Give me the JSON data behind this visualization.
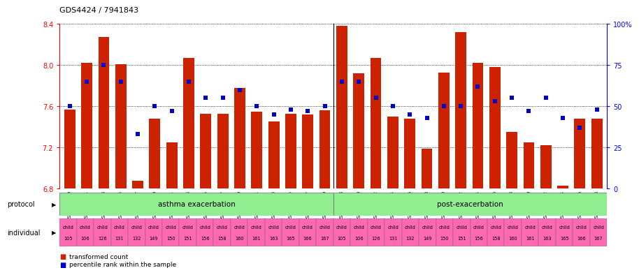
{
  "title": "GDS4424 / 7941843",
  "samples": [
    "GSM751969",
    "GSM751971",
    "GSM751973",
    "GSM751975",
    "GSM751977",
    "GSM751979",
    "GSM751981",
    "GSM751983",
    "GSM751985",
    "GSM751987",
    "GSM751989",
    "GSM751991",
    "GSM751993",
    "GSM751995",
    "GSM751997",
    "GSM751999",
    "GSM751968",
    "GSM751970",
    "GSM751972",
    "GSM751974",
    "GSM751976",
    "GSM751978",
    "GSM751980",
    "GSM751982",
    "GSM751984",
    "GSM751986",
    "GSM751988",
    "GSM751990",
    "GSM751992",
    "GSM751994",
    "GSM751996",
    "GSM751998"
  ],
  "bar_values": [
    7.57,
    8.02,
    8.27,
    8.01,
    6.88,
    7.48,
    7.25,
    8.07,
    7.53,
    7.53,
    7.78,
    7.55,
    7.45,
    7.53,
    7.52,
    7.56,
    8.38,
    7.92,
    8.07,
    7.5,
    7.48,
    7.19,
    7.93,
    8.32,
    8.02,
    7.98,
    7.35,
    7.25,
    7.22,
    6.83,
    7.48,
    7.48
  ],
  "dot_percentiles": [
    50,
    65,
    75,
    65,
    33,
    50,
    47,
    65,
    55,
    55,
    60,
    50,
    45,
    48,
    47,
    50,
    65,
    65,
    55,
    50,
    45,
    43,
    50,
    50,
    62,
    53,
    55,
    47,
    55,
    43,
    37,
    48
  ],
  "individual_labels_top": [
    "child",
    "child",
    "child",
    "child",
    "child",
    "child",
    "child",
    "child",
    "child",
    "child",
    "child",
    "child",
    "child",
    "child",
    "child",
    "child",
    "child",
    "child",
    "child",
    "child",
    "child",
    "child",
    "child",
    "child",
    "child",
    "child",
    "child",
    "child",
    "child",
    "child",
    "child",
    "child"
  ],
  "individual_labels_bot": [
    "105",
    "106",
    "126",
    "131",
    "132",
    "149",
    "150",
    "151",
    "156",
    "158",
    "160",
    "161",
    "163",
    "165",
    "166",
    "167",
    "105",
    "106",
    "126",
    "131",
    "132",
    "149",
    "150",
    "151",
    "156",
    "158",
    "160",
    "161",
    "163",
    "165",
    "166",
    "167"
  ],
  "ymin": 6.8,
  "ymax": 8.4,
  "yticks_left": [
    6.8,
    7.2,
    7.6,
    8.0,
    8.4
  ],
  "yticks_right": [
    0,
    25,
    50,
    75,
    100
  ],
  "bar_color": "#CC2200",
  "dot_color": "#0000CC",
  "asthma_color": "#90EE90",
  "post_color": "#90EE90",
  "individual_color": "#FF69B4",
  "asthma_label": "asthma exacerbation",
  "post_label": "post-exacerbation",
  "protocol_label": "protocol",
  "individual_label": "individual",
  "legend1": "transformed count",
  "legend2": "percentile rank within the sample",
  "n_asthma": 16,
  "n_post": 16
}
